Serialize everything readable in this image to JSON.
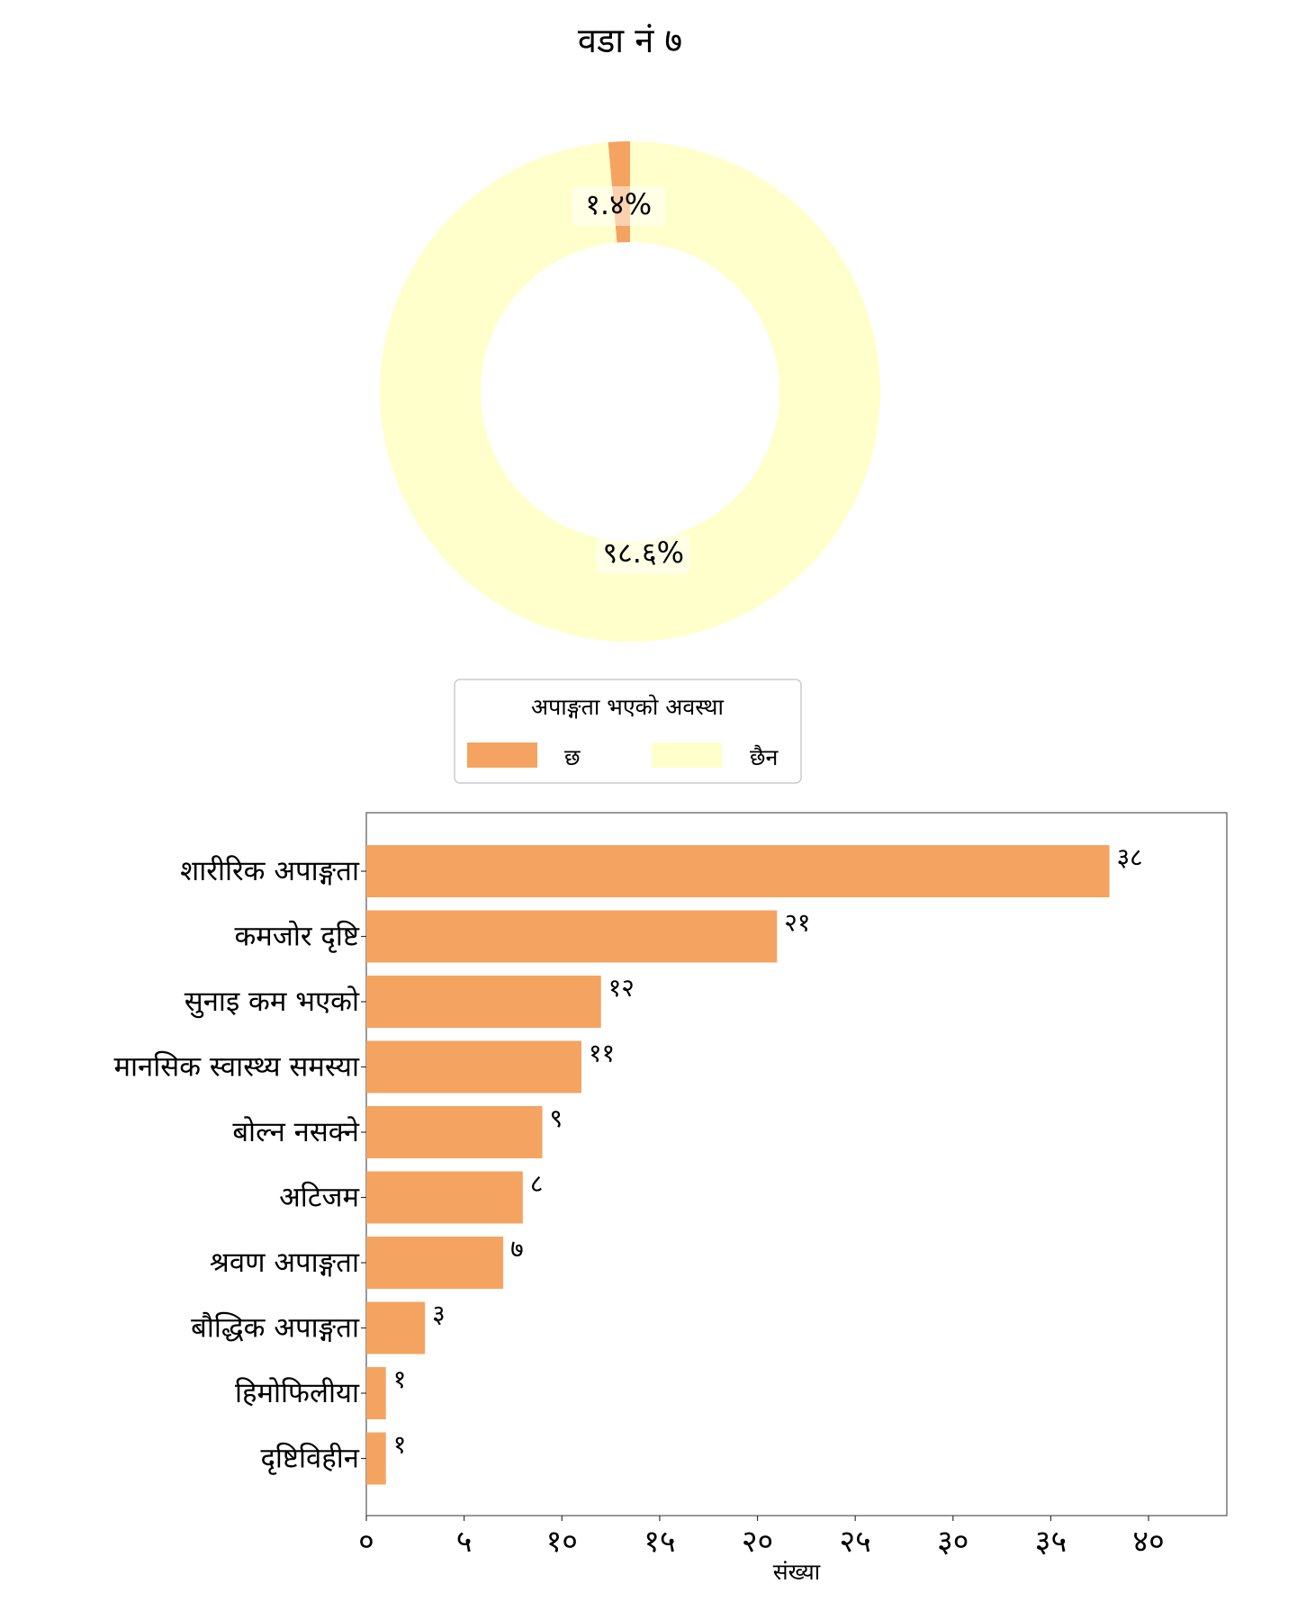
{
  "title": "वडा नं ७",
  "chart_data": [
    {
      "type": "pie",
      "variant": "donut",
      "legend_title": "अपाङ्गता भएको अवस्था",
      "slices": [
        {
          "label": "छ",
          "value": 1.4,
          "pct_label": "१.४%",
          "color": "#F4A460"
        },
        {
          "label": "छैन",
          "value": 98.6,
          "pct_label": "९८.६%",
          "color": "#FFFFCC"
        }
      ]
    },
    {
      "type": "bar",
      "orientation": "horizontal",
      "xlabel": "संख्या",
      "xlim": [
        0,
        44
      ],
      "xticks": [
        0,
        5,
        10,
        15,
        20,
        25,
        30,
        35,
        40
      ],
      "xtick_labels": [
        "०",
        "५",
        "१०",
        "१५",
        "२०",
        "२५",
        "३०",
        "३५",
        "४०"
      ],
      "bar_color": "#F4A460",
      "categories": [
        "शारीरिक अपाङ्गता",
        "कमजोर दृष्टि",
        "सुनाइ कम भएको",
        "मानसिक स्वास्थ्य समस्या",
        "बोल्न नसक्ने",
        "अटिजम",
        "श्रवण अपाङ्गता",
        "बौद्धिक अपाङ्गता",
        "हिमोफिलीया",
        "दृष्टिविहीन"
      ],
      "values": [
        38,
        21,
        12,
        11,
        9,
        8,
        7,
        3,
        1,
        1
      ],
      "value_labels": [
        "३८",
        "२१",
        "१२",
        "११",
        "९",
        "८",
        "७",
        "३",
        "१",
        "१"
      ]
    }
  ]
}
